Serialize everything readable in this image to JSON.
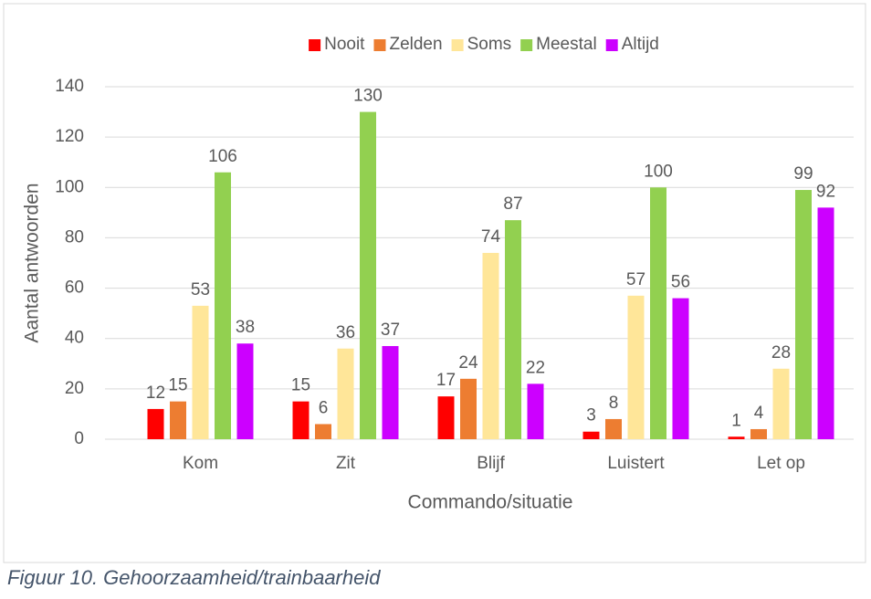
{
  "chart_data": {
    "type": "bar",
    "caption": "Figuur 10. Gehoorzaamheid/trainbaarheid",
    "xlabel": "Commando/situatie",
    "ylabel": "Aantal antwoorden",
    "categories": [
      "Kom",
      "Zit",
      "Blijf",
      "Luistert",
      "Let op"
    ],
    "series": [
      {
        "name": "Nooit",
        "color": "#ff0000",
        "values": [
          12,
          15,
          17,
          3,
          1
        ]
      },
      {
        "name": "Zelden",
        "color": "#ed7d31",
        "values": [
          15,
          6,
          24,
          8,
          4
        ]
      },
      {
        "name": "Soms",
        "color": "#ffe699",
        "values": [
          53,
          36,
          74,
          57,
          28
        ]
      },
      {
        "name": "Meestal",
        "color": "#92d050",
        "values": [
          106,
          130,
          87,
          100,
          99
        ]
      },
      {
        "name": "Altijd",
        "color": "#cc00ff",
        "values": [
          38,
          37,
          22,
          56,
          92
        ]
      }
    ],
    "ylim": [
      0,
      140
    ],
    "yticks": [
      0,
      20,
      40,
      60,
      80,
      100,
      120,
      140
    ],
    "grid": true,
    "legend": "top"
  }
}
